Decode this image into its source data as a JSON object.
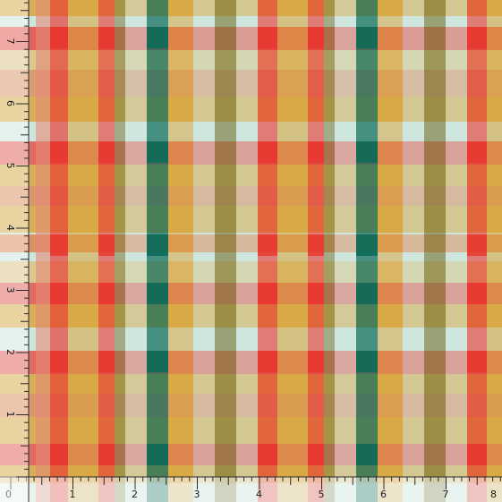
{
  "swatch": {
    "pattern": "plaid",
    "colors": {
      "base_pale": "#cfe6df",
      "mustard": "#d9a43a",
      "orange": "#e36b2c",
      "red": "#e8362e",
      "salmon": "#e58a78",
      "teal": "#0c6b58",
      "olive": "#7c7c3d",
      "tan": "#dcc07a"
    }
  },
  "ruler": {
    "bottom_labels": [
      "0",
      "1",
      "2",
      "3",
      "4",
      "5",
      "6",
      "7",
      "8"
    ],
    "left_labels": [
      "7",
      "6",
      "5",
      "4",
      "3",
      "2",
      "1"
    ]
  }
}
